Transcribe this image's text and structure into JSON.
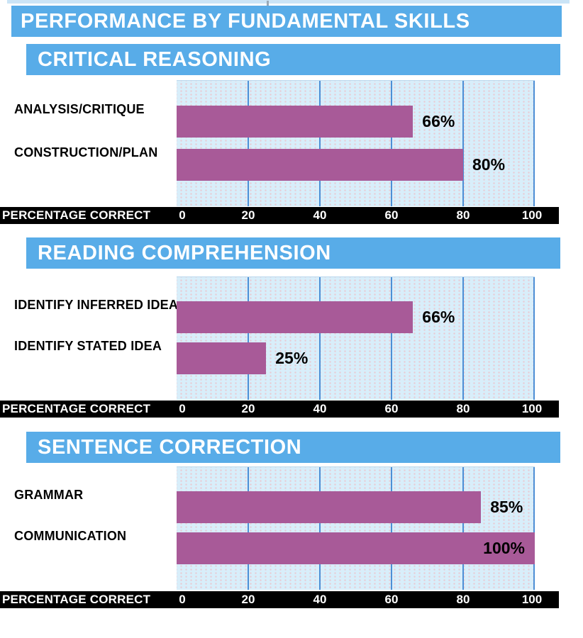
{
  "page_title": "PERFORMANCE BY FUNDAMENTAL SKILLS",
  "colors": {
    "banner_blue": "#58ACE8",
    "bar_purple": "#A85A98",
    "plot_background": "#D8EEFA",
    "gridline_blue": "#4C8FD6",
    "axis_band": "#000000",
    "top_strip": "#CBE4F6"
  },
  "chart_data": [
    {
      "type": "bar",
      "orientation": "horizontal",
      "title": "CRITICAL REASONING",
      "categories": [
        "ANALYSIS/CRITIQUE",
        "CONSTRUCTION/PLAN"
      ],
      "values": [
        66,
        80
      ],
      "value_labels": [
        "66%",
        "80%"
      ],
      "xlabel": "PERCENTAGE CORRECT",
      "xlim": [
        0,
        100
      ],
      "xticks": [
        0,
        20,
        40,
        60,
        80,
        100
      ],
      "grid": true,
      "legend": false,
      "bar_color": "#A85A98"
    },
    {
      "type": "bar",
      "orientation": "horizontal",
      "title": "READING COMPREHENSION",
      "categories": [
        "IDENTIFY INFERRED IDEA",
        "IDENTIFY STATED IDEA"
      ],
      "values": [
        66,
        25
      ],
      "value_labels": [
        "66%",
        "25%"
      ],
      "xlabel": "PERCENTAGE CORRECT",
      "xlim": [
        0,
        100
      ],
      "xticks": [
        0,
        20,
        40,
        60,
        80,
        100
      ],
      "grid": true,
      "legend": false,
      "bar_color": "#A85A98"
    },
    {
      "type": "bar",
      "orientation": "horizontal",
      "title": "SENTENCE CORRECTION",
      "categories": [
        "GRAMMAR",
        "COMMUNICATION"
      ],
      "values": [
        85,
        100
      ],
      "value_labels": [
        "85%",
        "100%"
      ],
      "xlabel": "PERCENTAGE CORRECT",
      "xlim": [
        0,
        100
      ],
      "xticks": [
        0,
        20,
        40,
        60,
        80,
        100
      ],
      "grid": true,
      "legend": false,
      "bar_color": "#A85A98"
    }
  ]
}
